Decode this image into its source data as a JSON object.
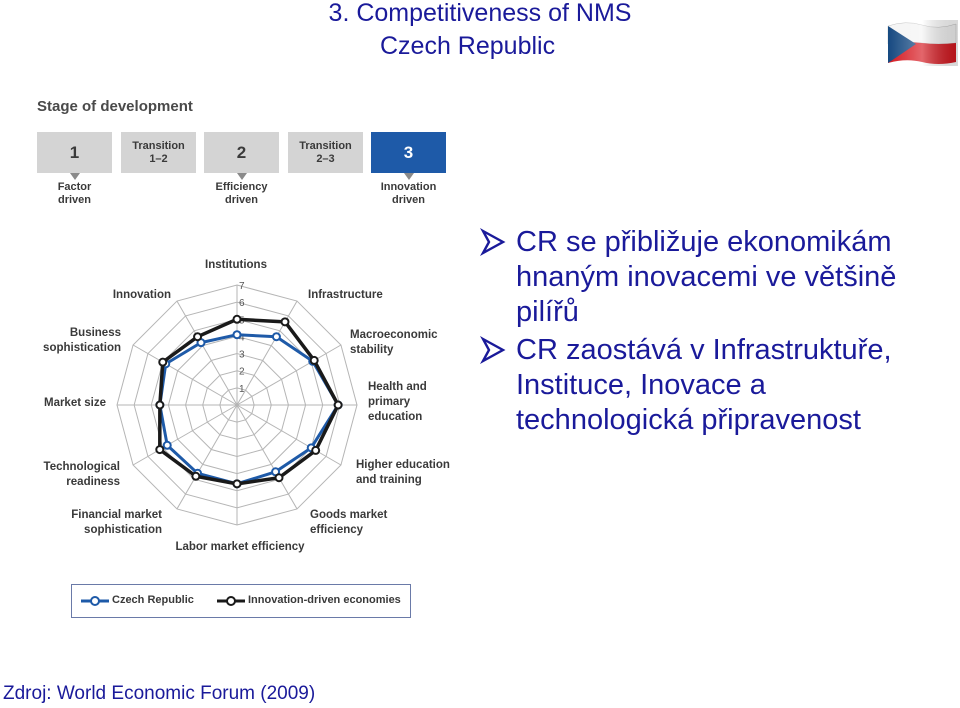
{
  "header": {
    "title_line1": "3. Competitiveness of NMS",
    "title_line2": "Czech Republic",
    "flag_icon": "czech-flag-icon"
  },
  "stages": {
    "title": "Stage of development",
    "boxes": [
      {
        "label": "1",
        "kind": "num",
        "sub": "Factor\ndriven"
      },
      {
        "label": "Transition\n1–2",
        "kind": "trans",
        "sub": ""
      },
      {
        "label": "2",
        "kind": "num",
        "sub": "Efficiency\ndriven"
      },
      {
        "label": "Transition\n2–3",
        "kind": "trans",
        "sub": ""
      },
      {
        "label": "3",
        "kind": "num",
        "sub": "Innovation\ndriven",
        "active": true
      }
    ],
    "active_color": "#1e5aa8"
  },
  "chart_data": {
    "type": "radar",
    "axes": [
      "Institutions",
      "Infrastructure",
      "Macroeconomic\nstability",
      "Health and\nprimary\neducation",
      "Higher education\nand training",
      "Goods market\nefficiency",
      "Labor market efficiency",
      "Financial market\nsophistication",
      "Technological\nreadiness",
      "Market size",
      "Business\nsophistication",
      "Innovation"
    ],
    "scale": {
      "min": 1,
      "max": 7,
      "tick_labels": [
        "1",
        "2",
        "3",
        "4",
        "5",
        "6",
        "7"
      ]
    },
    "series": [
      {
        "name": "Czech Republic",
        "color": "#1e5aa8",
        "values": [
          4.1,
          4.6,
          5.1,
          5.9,
          5.0,
          4.5,
          4.6,
          4.6,
          4.7,
          4.5,
          4.8,
          4.2
        ]
      },
      {
        "name": "Innovation-driven economies",
        "color": "#1a1a1a",
        "values": [
          5.0,
          5.6,
          5.2,
          5.9,
          5.3,
          4.9,
          4.6,
          4.8,
          5.2,
          4.5,
          5.0,
          4.6
        ]
      }
    ]
  },
  "bullets": [
    {
      "text": "CR se přibližuje ekonomikám hnaným inovacemi ve většině pilířů",
      "icon": "arrow-bullet-icon"
    },
    {
      "text": "CR zaostává v Infrastruktuře, Instituce, Inovace a technologická připravenost",
      "icon": "arrow-bullet-icon"
    }
  ],
  "source": "Zdroj: World Economic Forum (2009)"
}
